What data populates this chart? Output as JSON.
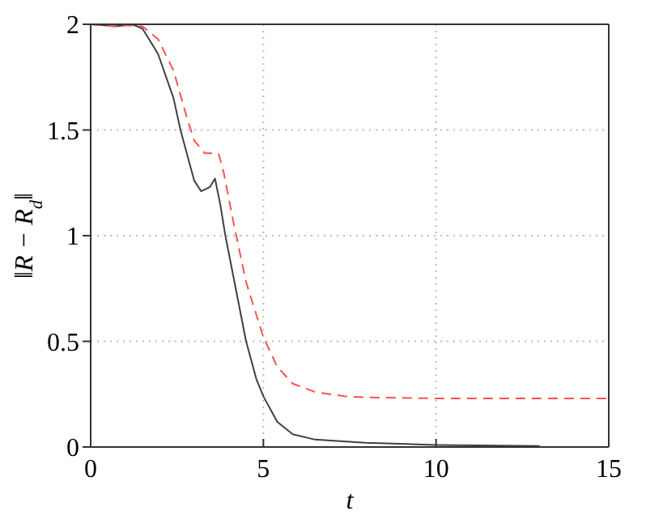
{
  "chart_data": {
    "type": "line",
    "xlabel": "t",
    "ylabel": "‖R − R$_{d}$‖",
    "xlim": [
      0,
      15
    ],
    "ylim": [
      0,
      2
    ],
    "xticks": [
      0,
      5,
      10,
      15
    ],
    "yticks": [
      0,
      0.5,
      1,
      1.5,
      2
    ],
    "grid": true,
    "marker": "none",
    "series": [
      {
        "color": "#404040",
        "line_style": "solid",
        "x": [
          0,
          0.4,
          0.7,
          1.0,
          1.2,
          1.5,
          1.95,
          2.4,
          2.6,
          2.85,
          3.0,
          3.2,
          3.45,
          3.6,
          3.75,
          3.9,
          4.2,
          4.5,
          4.8,
          5.0,
          5.4,
          5.85,
          6.5,
          7.95,
          10,
          13
        ],
        "values": [
          2.0,
          1.995,
          1.99,
          1.995,
          2.0,
          1.98,
          1.86,
          1.65,
          1.5,
          1.35,
          1.26,
          1.21,
          1.23,
          1.27,
          1.15,
          1.0,
          0.75,
          0.5,
          0.32,
          0.24,
          0.12,
          0.06,
          0.035,
          0.02,
          0.01,
          0.005
        ]
      },
      {
        "color": "#ff5050",
        "line_style": "dashed",
        "x": [
          0,
          0.4,
          0.7,
          1.0,
          1.5,
          1.95,
          2.4,
          2.8,
          3.0,
          3.3,
          3.7,
          3.85,
          4.15,
          4.5,
          5.0,
          5.4,
          5.85,
          6.5,
          7.35,
          8,
          10,
          15
        ],
        "values": [
          2.0,
          1.995,
          1.99,
          1.995,
          1.99,
          1.93,
          1.78,
          1.55,
          1.45,
          1.39,
          1.39,
          1.3,
          1.05,
          0.78,
          0.52,
          0.38,
          0.3,
          0.26,
          0.24,
          0.235,
          0.23,
          0.23
        ]
      }
    ]
  }
}
